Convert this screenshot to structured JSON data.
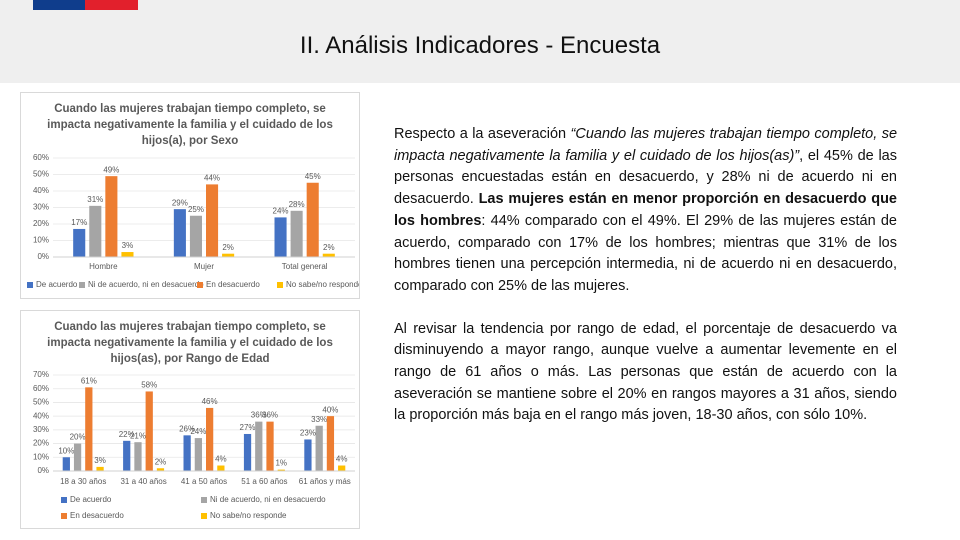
{
  "header": {
    "title": "II. Análisis Indicadores - Encuesta"
  },
  "chart_data": [
    {
      "type": "bar",
      "title": "Cuando las mujeres trabajan tiempo completo, se impacta negativamente la familia y el cuidado de los hijos(a), por Sexo",
      "categories": [
        "Hombre",
        "Mujer",
        "Total general"
      ],
      "series": [
        {
          "name": "De acuerdo",
          "color": "#4472c4",
          "values": [
            17,
            29,
            24
          ],
          "value_labels": [
            "17%",
            "29%",
            "24%"
          ]
        },
        {
          "name": "Ni de acuerdo, ni en desacuerdo",
          "color": "#a5a5a5",
          "values": [
            31,
            25,
            28
          ],
          "value_labels": [
            "31%",
            "25%",
            "28%"
          ]
        },
        {
          "name": "En desacuerdo",
          "color": "#ed7d31",
          "values": [
            49,
            44,
            45
          ],
          "value_labels": [
            "49%",
            "44%",
            "45%"
          ]
        },
        {
          "name": "No sabe/no responde",
          "color": "#ffc000",
          "values": [
            3,
            2,
            2
          ],
          "value_labels": [
            "3%",
            "2%",
            "2%"
          ]
        }
      ],
      "ylim": [
        0,
        60
      ],
      "yticks": [
        {
          "value": 0,
          "label": "0%"
        },
        {
          "value": 10,
          "label": "10%"
        },
        {
          "value": 20,
          "label": "20%"
        },
        {
          "value": 30,
          "label": "30%"
        },
        {
          "value": 40,
          "label": "40%"
        },
        {
          "value": 50,
          "label": "50%"
        },
        {
          "value": 60,
          "label": "60%"
        }
      ],
      "grid": true
    },
    {
      "type": "bar",
      "title": "Cuando las mujeres trabajan tiempo completo, se impacta negativamente la familia y el cuidado de los hijos(as), por Rango de Edad",
      "categories": [
        "18 a 30 años",
        "31 a 40 años",
        "41 a 50 años",
        "51 a 60 años",
        "61 años y más"
      ],
      "series": [
        {
          "name": "De acuerdo",
          "color": "#4472c4",
          "values": [
            10,
            22,
            26,
            27,
            23
          ],
          "value_labels": [
            "10%",
            "22%",
            "26%",
            "27%",
            "23%"
          ]
        },
        {
          "name": "Ni de acuerdo, ni en desacuerdo",
          "color": "#a5a5a5",
          "values": [
            20,
            21,
            24,
            36,
            33
          ],
          "value_labels": [
            "20%",
            "21%",
            "24%",
            "36%",
            "33%"
          ]
        },
        {
          "name": "En desacuerdo",
          "color": "#ed7d31",
          "values": [
            61,
            58,
            46,
            36,
            40
          ],
          "value_labels": [
            "61%",
            "58%",
            "46%",
            "36%",
            "40%"
          ]
        },
        {
          "name": "No sabe/no responde",
          "color": "#ffc000",
          "values": [
            3,
            2,
            4,
            1,
            4
          ],
          "value_labels": [
            "3%",
            "2%",
            "4%",
            "1%",
            "4%"
          ]
        }
      ],
      "ylim": [
        0,
        70
      ],
      "yticks": [
        {
          "value": 0,
          "label": "0%"
        },
        {
          "value": 10,
          "label": "10%"
        },
        {
          "value": 20,
          "label": "20%"
        },
        {
          "value": 30,
          "label": "30%"
        },
        {
          "value": 40,
          "label": "40%"
        },
        {
          "value": 50,
          "label": "50%"
        },
        {
          "value": 60,
          "label": "60%"
        },
        {
          "value": 70,
          "label": "70%"
        }
      ],
      "grid": true
    }
  ],
  "paragraphs": [
    [
      "Respecto a la aseveración ",
      "“Cuando las mujeres trabajan tiempo completo, se impacta negativamente la familia y el cuidado de los hijos(as)”",
      ", el 45% de las personas encuestadas están en desacuerdo, y 28% ni de acuerdo ni en desacuerdo. ",
      "Las mujeres están en menor proporción en desacuerdo que los hombres",
      ": 44% comparado con el 49%. El 29% de las mujeres están de acuerdo, comparado con 17% de los hombres; mientras que 31% de los hombres tienen una percepción intermedia, ni de acuerdo ni en desacuerdo, comparado con 25% de las mujeres."
    ],
    [
      "Al revisar la tendencia por rango de edad, el porcentaje de desacuerdo va disminuyendo a mayor rango, aunque vuelve a aumentar levemente en el rango de 61 años o más. Las personas que están de acuerdo con la aseveración se mantiene sobre el 20% en rangos mayores a 31 años, siendo la proporción más baja en el rango más joven, 18-30 años, con sólo 10%."
    ]
  ]
}
